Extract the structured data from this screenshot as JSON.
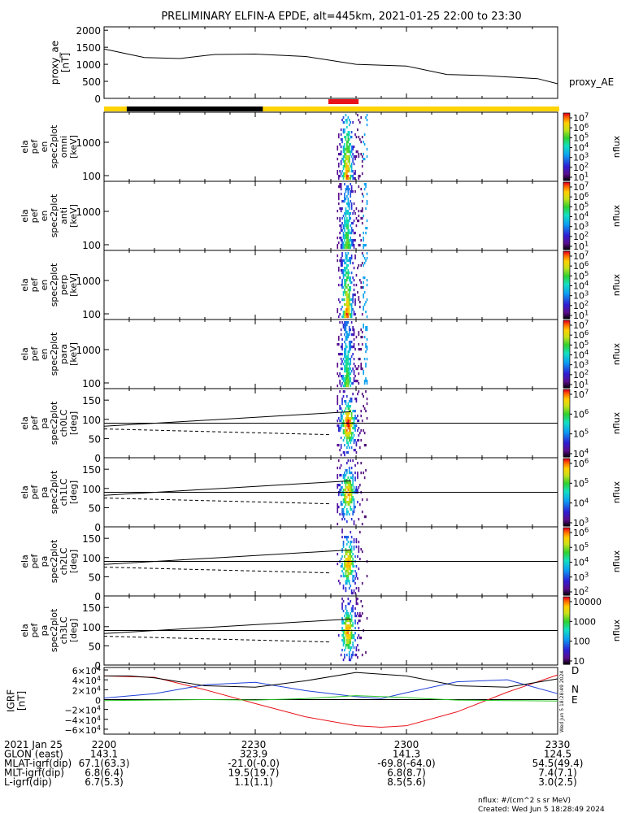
{
  "title": "PRELIMINARY ELFIN-A EPDE, alt=445km, 2021-01-25 22:00 to 23:30",
  "colors": {
    "science_bar": "#ffd400",
    "shadow_bar": "#000000",
    "epd_bar": "#e8131a",
    "igrf_d": "#e8131a",
    "igrf_n": "#1f3fd6",
    "igrf_e": "#27c322",
    "black": "#000000"
  },
  "timestamp_vertical": "Wed Jun  5 18:28:49 2024",
  "footer": {
    "units_note": "nflux: #/(cm^2 s sr MeV)",
    "created": "Created: Wed Jun  5 18:28:49 2024"
  },
  "orbit_table": {
    "rows": [
      {
        "label": "2021 Jan 25",
        "values": [
          "2200",
          "2230",
          "2300",
          "2330"
        ]
      },
      {
        "label": "GLON (east)",
        "values": [
          "143.1",
          "323.9",
          "141.3",
          "124.5"
        ]
      },
      {
        "label": "MLAT-igrf(dip)",
        "values": [
          "67.1(63.3)",
          "-21.0(-0.0)",
          "-69.8(-64.0)",
          "54.5(49.4)"
        ]
      },
      {
        "label": "MLT-igrf(dip)",
        "values": [
          "6.8(6.4)",
          "19.5(19.7)",
          "6.8(8.7)",
          "7.4(7.1)"
        ]
      },
      {
        "label": "L-igrf(dip)",
        "values": [
          "6.7(5.3)",
          "1.1(1.1)",
          "8.5(5.6)",
          "3.0(2.5)"
        ]
      }
    ]
  },
  "chart_data": [
    {
      "type": "line",
      "panel": "proxy_ae",
      "ylabel": [
        "proxy_ae",
        "[nT]"
      ],
      "ylim": [
        0,
        2100
      ],
      "yticks": [
        "2000",
        "1500",
        "1000",
        "500",
        "0"
      ],
      "ytick_values": [
        2000,
        1500,
        1000,
        500,
        0
      ],
      "xlim_min": [
        0,
        90
      ],
      "series": [
        {
          "name": "proxy_AE",
          "x": [
            0,
            8,
            15,
            22,
            30,
            40,
            50,
            60,
            68,
            75,
            80,
            86,
            90
          ],
          "y": [
            1450,
            1200,
            1170,
            1290,
            1300,
            1230,
            1000,
            950,
            700,
            670,
            630,
            580,
            430
          ]
        }
      ]
    },
    {
      "type": "heatmap",
      "panel": "omni",
      "ylabel": [
        "ela",
        "pef",
        "en",
        "spec2plot",
        "omni",
        "[keV]"
      ],
      "yscale": "log",
      "yticks": [
        "1000",
        "100"
      ],
      "colorbar": {
        "label": "nflux",
        "ticks": [
          "10^7",
          "10^6",
          "10^5",
          "10^4",
          "10^3",
          "10^2",
          "10^1"
        ]
      },
      "active_x_min": [
        46.2,
        52.2
      ]
    },
    {
      "type": "heatmap",
      "panel": "anti",
      "ylabel": [
        "ela",
        "pef",
        "en",
        "spec2plot",
        "anti",
        "[keV]"
      ],
      "yscale": "log",
      "yticks": [
        "1000",
        "100"
      ],
      "colorbar": {
        "label": "nflux",
        "ticks": [
          "10^7",
          "10^6",
          "10^5",
          "10^4",
          "10^3",
          "10^2",
          "10^1"
        ]
      },
      "active_x_min": [
        46.2,
        52.2
      ]
    },
    {
      "type": "heatmap",
      "panel": "perp",
      "ylabel": [
        "ela",
        "pef",
        "en",
        "spec2plot",
        "perp",
        "[keV]"
      ],
      "yscale": "log",
      "yticks": [
        "1000",
        "100"
      ],
      "colorbar": {
        "label": "nflux",
        "ticks": [
          "10^7",
          "10^6",
          "10^5",
          "10^4",
          "10^3",
          "10^2",
          "10^1"
        ]
      },
      "active_x_min": [
        46.2,
        52.2
      ]
    },
    {
      "type": "heatmap",
      "panel": "para",
      "ylabel": [
        "ela",
        "pef",
        "en",
        "spec2plot",
        "para",
        "[keV]"
      ],
      "yscale": "log",
      "yticks": [
        "1000",
        "100"
      ],
      "colorbar": {
        "label": "nflux",
        "ticks": [
          "10^7",
          "10^6",
          "10^5",
          "10^4",
          "10^3",
          "10^2",
          "10^1"
        ]
      },
      "active_x_min": [
        46.2,
        52.2
      ]
    },
    {
      "type": "heatmap",
      "panel": "ch0LC",
      "ylabel": [
        "ela",
        "pef",
        "pa",
        "spec2plot",
        "ch0LC",
        "[deg]"
      ],
      "ylim": [
        0,
        180
      ],
      "yticks": [
        "150",
        "100",
        "50",
        "0"
      ],
      "colorbar": {
        "label": "nflux",
        "ticks": [
          "10^7",
          "10^6",
          "10^5",
          "10^4"
        ]
      },
      "active_x_min": [
        46.2,
        52.2
      ]
    },
    {
      "type": "heatmap",
      "panel": "ch1LC",
      "ylabel": [
        "ela",
        "pef",
        "pa",
        "spec2plot",
        "ch1LC",
        "[deg]"
      ],
      "ylim": [
        0,
        180
      ],
      "yticks": [
        "150",
        "100",
        "50",
        "0"
      ],
      "colorbar": {
        "label": "nflux",
        "ticks": [
          "10^6",
          "10^5",
          "10^4",
          "10^3"
        ]
      },
      "active_x_min": [
        46.2,
        52.2
      ]
    },
    {
      "type": "heatmap",
      "panel": "ch2LC",
      "ylabel": [
        "ela",
        "pef",
        "pa",
        "spec2plot",
        "ch2LC",
        "[deg]"
      ],
      "ylim": [
        0,
        180
      ],
      "yticks": [
        "150",
        "100",
        "50",
        "0"
      ],
      "colorbar": {
        "label": "nflux",
        "ticks": [
          "10^6",
          "10^5",
          "10^4",
          "10^3",
          "10^2"
        ]
      },
      "active_x_min": [
        46.2,
        52.2
      ]
    },
    {
      "type": "heatmap",
      "panel": "ch3LC",
      "ylabel": [
        "ela",
        "pef",
        "pa",
        "spec2plot",
        "ch3LC",
        "[deg]"
      ],
      "ylim": [
        0,
        180
      ],
      "yticks": [
        "150",
        "100",
        "50",
        "0"
      ],
      "colorbar": {
        "label": "nflux",
        "ticks": [
          "10000",
          "1000",
          "100",
          "10"
        ]
      },
      "active_x_min": [
        46.2,
        52.2
      ]
    },
    {
      "type": "line",
      "panel": "igrf",
      "ylabel": [
        "IGRF",
        "[nT]"
      ],
      "ylim": [
        -70000,
        65000
      ],
      "yticks": [
        "6×10^4",
        "4×10^4",
        "2×10^4",
        "0",
        "−2×10^4",
        "−4×10^4",
        "−6×10^4"
      ],
      "ytick_values": [
        60000,
        40000,
        20000,
        0,
        -20000,
        -40000,
        -60000
      ],
      "series": [
        {
          "name": "D",
          "x": [
            0,
            10,
            20,
            30,
            40,
            50,
            55,
            60,
            70,
            80,
            90
          ],
          "y": [
            48000,
            45000,
            20000,
            -8000,
            -35000,
            -53000,
            -56000,
            -53000,
            -25000,
            15000,
            50000
          ]
        },
        {
          "name": "N",
          "x": [
            0,
            10,
            20,
            30,
            40,
            50,
            55,
            60,
            70,
            80,
            90
          ],
          "y": [
            3000,
            12000,
            30000,
            35000,
            18000,
            6000,
            2000,
            14000,
            36000,
            40000,
            12000
          ]
        },
        {
          "name": "E",
          "x": [
            0,
            10,
            20,
            30,
            40,
            50,
            60,
            70,
            80,
            90
          ],
          "y": [
            -2000,
            -1000,
            0,
            -1000,
            2000,
            8000,
            4000,
            -1000,
            -2000,
            -3000
          ]
        },
        {
          "name": "",
          "x": [
            0,
            5,
            10,
            20,
            30,
            40,
            50,
            60,
            70,
            80,
            90
          ],
          "y": [
            48000,
            48000,
            44000,
            28000,
            25000,
            38000,
            55000,
            48000,
            28000,
            25000,
            42000
          ]
        }
      ]
    }
  ]
}
